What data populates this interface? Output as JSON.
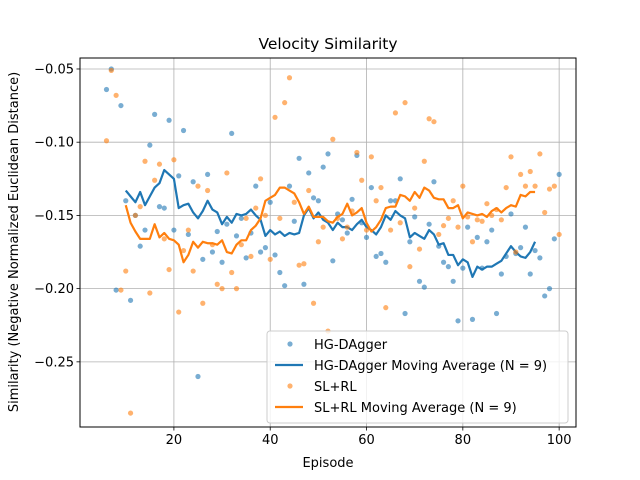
{
  "chart_data": {
    "type": "scatter",
    "title": "Velocity Similarity",
    "xlabel": "Episode",
    "ylabel": "Similarity (Negative Normalized Euclidean Distance)",
    "xlim": [
      0.5,
      103.5
    ],
    "ylim": [
      -0.2945,
      -0.0425
    ],
    "xticks": [
      20,
      40,
      60,
      80,
      100
    ],
    "yticks": [
      -0.25,
      -0.2,
      -0.15,
      -0.1,
      -0.05
    ],
    "ytick_labels": [
      "−0.25",
      "−0.20",
      "−0.15",
      "−0.10",
      "−0.05"
    ],
    "grid": true,
    "legend_position": "lower-right",
    "series": [
      {
        "name": "HG-DAgger",
        "kind": "scatter",
        "color": "#1f77b4",
        "x": [
          6,
          7,
          8,
          9,
          10,
          11,
          12,
          13,
          14,
          15,
          16,
          17,
          18,
          19,
          20,
          21,
          22,
          23,
          24,
          25,
          26,
          27,
          28,
          29,
          30,
          31,
          32,
          33,
          34,
          35,
          36,
          37,
          38,
          39,
          40,
          41,
          42,
          43,
          44,
          45,
          46,
          47,
          48,
          49,
          50,
          51,
          52,
          53,
          54,
          55,
          56,
          57,
          58,
          59,
          60,
          61,
          62,
          63,
          64,
          65,
          66,
          67,
          68,
          69,
          70,
          71,
          72,
          73,
          74,
          75,
          76,
          77,
          78,
          79,
          80,
          81,
          82,
          83,
          84,
          85,
          86,
          87,
          88,
          89,
          90,
          91,
          92,
          93,
          94,
          95,
          96,
          97,
          98,
          99,
          100
        ],
        "y": [
          -0.064,
          -0.05,
          -0.201,
          -0.075,
          -0.14,
          -0.208,
          -0.15,
          -0.171,
          -0.16,
          -0.102,
          -0.081,
          -0.144,
          -0.145,
          -0.085,
          -0.16,
          -0.123,
          -0.092,
          -0.163,
          -0.127,
          -0.26,
          -0.18,
          -0.122,
          -0.175,
          -0.161,
          -0.182,
          -0.156,
          -0.094,
          -0.164,
          -0.152,
          -0.179,
          -0.162,
          -0.13,
          -0.175,
          -0.172,
          -0.141,
          -0.177,
          -0.189,
          -0.198,
          -0.13,
          -0.154,
          -0.111,
          -0.197,
          -0.121,
          -0.138,
          -0.14,
          -0.117,
          -0.108,
          -0.181,
          -0.149,
          -0.153,
          -0.162,
          -0.139,
          -0.109,
          -0.155,
          -0.165,
          -0.131,
          -0.178,
          -0.176,
          -0.182,
          -0.14,
          -0.14,
          -0.125,
          -0.217,
          -0.168,
          -0.151,
          -0.195,
          -0.199,
          -0.156,
          -0.127,
          -0.171,
          -0.182,
          -0.185,
          -0.195,
          -0.222,
          -0.186,
          -0.158,
          -0.221,
          -0.165,
          -0.186,
          -0.168,
          -0.16,
          -0.217,
          -0.19,
          -0.178,
          -0.149,
          -0.176,
          -0.172,
          -0.158,
          -0.19,
          -0.174,
          -0.179,
          -0.205,
          -0.2,
          -0.166,
          -0.122
        ]
      },
      {
        "name": "HG-DAgger Moving Average (N = 9)",
        "kind": "line",
        "color": "#1f77b4",
        "x": [
          10,
          11,
          12,
          13,
          14,
          15,
          16,
          17,
          18,
          19,
          20,
          21,
          22,
          23,
          24,
          25,
          26,
          27,
          28,
          29,
          30,
          31,
          32,
          33,
          34,
          35,
          36,
          37,
          38,
          39,
          40,
          41,
          42,
          43,
          44,
          45,
          46,
          47,
          48,
          49,
          50,
          51,
          52,
          53,
          54,
          55,
          56,
          57,
          58,
          59,
          60,
          61,
          62,
          63,
          64,
          65,
          66,
          67,
          68,
          69,
          70,
          71,
          72,
          73,
          74,
          75,
          76,
          77,
          78,
          79,
          80,
          81,
          82,
          83,
          84,
          85,
          86,
          87,
          88,
          89,
          90,
          91,
          92,
          93,
          94,
          95
        ],
        "y": [
          -0.133,
          -0.137,
          -0.141,
          -0.134,
          -0.143,
          -0.137,
          -0.131,
          -0.128,
          -0.119,
          -0.122,
          -0.125,
          -0.145,
          -0.143,
          -0.142,
          -0.148,
          -0.152,
          -0.147,
          -0.14,
          -0.146,
          -0.148,
          -0.156,
          -0.151,
          -0.155,
          -0.149,
          -0.15,
          -0.149,
          -0.146,
          -0.15,
          -0.153,
          -0.164,
          -0.16,
          -0.163,
          -0.161,
          -0.164,
          -0.162,
          -0.163,
          -0.162,
          -0.15,
          -0.145,
          -0.152,
          -0.148,
          -0.153,
          -0.155,
          -0.16,
          -0.155,
          -0.158,
          -0.158,
          -0.16,
          -0.156,
          -0.153,
          -0.158,
          -0.16,
          -0.163,
          -0.158,
          -0.15,
          -0.153,
          -0.147,
          -0.15,
          -0.152,
          -0.165,
          -0.162,
          -0.164,
          -0.166,
          -0.16,
          -0.163,
          -0.17,
          -0.169,
          -0.177,
          -0.177,
          -0.184,
          -0.18,
          -0.182,
          -0.192,
          -0.185,
          -0.187,
          -0.185,
          -0.185,
          -0.183,
          -0.181,
          -0.176,
          -0.171,
          -0.175,
          -0.178,
          -0.179,
          -0.175,
          -0.168
        ]
      },
      {
        "name": "SL+RL",
        "kind": "scatter",
        "color": "#ff7f0e",
        "x": [
          6,
          7,
          8,
          9,
          10,
          11,
          12,
          13,
          14,
          15,
          16,
          17,
          18,
          19,
          20,
          21,
          22,
          23,
          24,
          25,
          26,
          27,
          28,
          29,
          30,
          31,
          32,
          33,
          34,
          35,
          36,
          37,
          38,
          39,
          40,
          41,
          42,
          43,
          44,
          45,
          46,
          47,
          48,
          49,
          50,
          51,
          52,
          53,
          54,
          55,
          56,
          57,
          58,
          59,
          60,
          61,
          62,
          63,
          64,
          65,
          66,
          67,
          68,
          69,
          70,
          71,
          72,
          73,
          74,
          75,
          76,
          77,
          78,
          79,
          80,
          81,
          82,
          83,
          84,
          85,
          86,
          87,
          88,
          89,
          90,
          91,
          92,
          93,
          94,
          95,
          96,
          97,
          98,
          99,
          100
        ],
        "y": [
          -0.099,
          -0.051,
          -0.068,
          -0.201,
          -0.188,
          -0.285,
          -0.15,
          -0.144,
          -0.113,
          -0.203,
          -0.126,
          -0.115,
          -0.166,
          -0.187,
          -0.112,
          -0.216,
          -0.174,
          -0.16,
          -0.188,
          -0.13,
          -0.21,
          -0.133,
          -0.17,
          -0.197,
          -0.2,
          -0.121,
          -0.189,
          -0.2,
          -0.17,
          -0.152,
          -0.178,
          -0.145,
          -0.125,
          -0.15,
          -0.18,
          -0.083,
          -0.152,
          -0.073,
          -0.056,
          -0.141,
          -0.184,
          -0.183,
          -0.133,
          -0.21,
          -0.168,
          -0.158,
          -0.229,
          -0.098,
          -0.152,
          -0.166,
          -0.158,
          -0.147,
          -0.107,
          -0.126,
          -0.16,
          -0.11,
          -0.14,
          -0.131,
          -0.213,
          -0.16,
          -0.08,
          -0.155,
          -0.073,
          -0.185,
          -0.145,
          -0.173,
          -0.113,
          -0.084,
          -0.086,
          -0.163,
          -0.157,
          -0.152,
          -0.14,
          -0.158,
          -0.13,
          -0.151,
          -0.168,
          -0.153,
          -0.154,
          -0.142,
          -0.15,
          -0.146,
          -0.153,
          -0.131,
          -0.11,
          -0.175,
          -0.122,
          -0.13,
          -0.12,
          -0.13,
          -0.108,
          -0.148,
          -0.132,
          -0.13,
          -0.163
        ]
      },
      {
        "name": "SL+RL Moving Average (N = 9)",
        "kind": "line",
        "color": "#ff7f0e",
        "x": [
          10,
          11,
          12,
          13,
          14,
          15,
          16,
          17,
          18,
          19,
          20,
          21,
          22,
          23,
          24,
          25,
          26,
          27,
          28,
          29,
          30,
          31,
          32,
          33,
          34,
          35,
          36,
          37,
          38,
          39,
          40,
          41,
          42,
          43,
          44,
          45,
          46,
          47,
          48,
          49,
          50,
          51,
          52,
          53,
          54,
          55,
          56,
          57,
          58,
          59,
          60,
          61,
          62,
          63,
          64,
          65,
          66,
          67,
          68,
          69,
          70,
          71,
          72,
          73,
          74,
          75,
          76,
          77,
          78,
          79,
          80,
          81,
          82,
          83,
          84,
          85,
          86,
          87,
          88,
          89,
          90,
          91,
          92,
          93,
          94,
          95
        ],
        "y": [
          -0.143,
          -0.155,
          -0.161,
          -0.166,
          -0.166,
          -0.166,
          -0.156,
          -0.165,
          -0.162,
          -0.166,
          -0.167,
          -0.17,
          -0.182,
          -0.177,
          -0.168,
          -0.172,
          -0.168,
          -0.169,
          -0.169,
          -0.17,
          -0.167,
          -0.175,
          -0.176,
          -0.17,
          -0.167,
          -0.167,
          -0.16,
          -0.157,
          -0.152,
          -0.14,
          -0.138,
          -0.136,
          -0.131,
          -0.131,
          -0.133,
          -0.135,
          -0.141,
          -0.149,
          -0.144,
          -0.151,
          -0.151,
          -0.151,
          -0.154,
          -0.155,
          -0.151,
          -0.149,
          -0.142,
          -0.15,
          -0.148,
          -0.145,
          -0.155,
          -0.161,
          -0.158,
          -0.153,
          -0.145,
          -0.144,
          -0.144,
          -0.136,
          -0.137,
          -0.14,
          -0.134,
          -0.138,
          -0.131,
          -0.133,
          -0.138,
          -0.139,
          -0.139,
          -0.145,
          -0.145,
          -0.143,
          -0.152,
          -0.148,
          -0.149,
          -0.15,
          -0.149,
          -0.151,
          -0.147,
          -0.145,
          -0.148,
          -0.145,
          -0.143,
          -0.144,
          -0.136,
          -0.137,
          -0.134,
          -0.134
        ]
      }
    ]
  }
}
